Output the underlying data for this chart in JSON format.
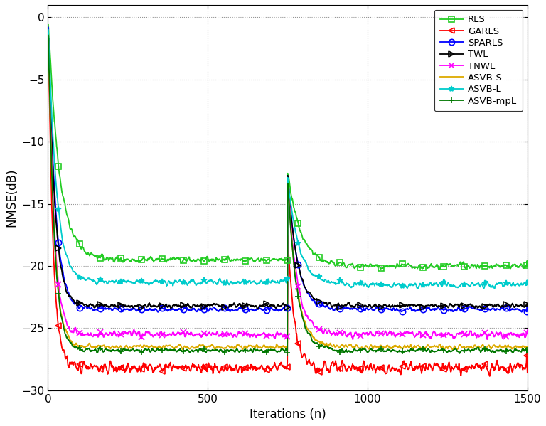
{
  "title": "",
  "xlabel": "Iterations (n)",
  "ylabel": "NMSE(dB)",
  "xlim": [
    0,
    1500
  ],
  "ylim": [
    -30,
    1
  ],
  "yticks": [
    0,
    -5,
    -10,
    -15,
    -20,
    -25,
    -30
  ],
  "xticks": [
    0,
    500,
    1000,
    1500
  ],
  "series": [
    {
      "name": "RLS",
      "color": "#22cc22",
      "marker": "s",
      "mfc": "none",
      "ms": 6,
      "lw": 1.3,
      "steady1": -19.5,
      "tau1": 35,
      "noise": 0.25,
      "rjump": -12.5,
      "steady2": -20.0,
      "tau2": 40
    },
    {
      "name": "GARLS",
      "color": "#ff0000",
      "marker": "<",
      "mfc": "none",
      "ms": 6,
      "lw": 1.3,
      "steady1": -28.2,
      "tau1": 15,
      "noise": 0.5,
      "rjump": -17.5,
      "steady2": -28.2,
      "tau2": 20
    },
    {
      "name": "SPARLS",
      "color": "#0000ff",
      "marker": "o",
      "mfc": "none",
      "ms": 6,
      "lw": 1.3,
      "steady1": -23.5,
      "tau1": 22,
      "noise": 0.2,
      "rjump": -12.8,
      "steady2": -23.5,
      "tau2": 30
    },
    {
      "name": "TWL",
      "color": "#000000",
      "marker": ">",
      "mfc": "none",
      "ms": 6,
      "lw": 1.3,
      "steady1": -23.2,
      "tau1": 20,
      "noise": 0.2,
      "rjump": -12.8,
      "steady2": -23.2,
      "tau2": 28
    },
    {
      "name": "TNWL",
      "color": "#ff00ff",
      "marker": "x",
      "mfc": "#ff00ff",
      "ms": 6,
      "lw": 1.3,
      "steady1": -25.5,
      "tau1": 18,
      "noise": 0.3,
      "rjump": -13.0,
      "steady2": -25.5,
      "tau2": 28
    },
    {
      "name": "ASVB-S",
      "color": "#ddaa00",
      "marker": "None",
      "mfc": "none",
      "ms": 0,
      "lw": 1.3,
      "steady1": -26.5,
      "tau1": 18,
      "noise": 0.2,
      "rjump": -13.2,
      "steady2": -26.5,
      "tau2": 28
    },
    {
      "name": "ASVB-L",
      "color": "#00cccc",
      "marker": "*",
      "mfc": "#00cccc",
      "ms": 6,
      "lw": 1.3,
      "steady1": -21.3,
      "tau1": 25,
      "noise": 0.25,
      "rjump": -13.0,
      "steady2": -21.5,
      "tau2": 35
    },
    {
      "name": "ASVB-mpL",
      "color": "#007700",
      "marker": "+",
      "mfc": "#007700",
      "ms": 6,
      "lw": 1.3,
      "steady1": -26.8,
      "tau1": 18,
      "noise": 0.2,
      "rjump": -13.2,
      "steady2": -26.8,
      "tau2": 28
    }
  ],
  "reset_n": 750,
  "n_total": 1500,
  "marker_every": 65
}
